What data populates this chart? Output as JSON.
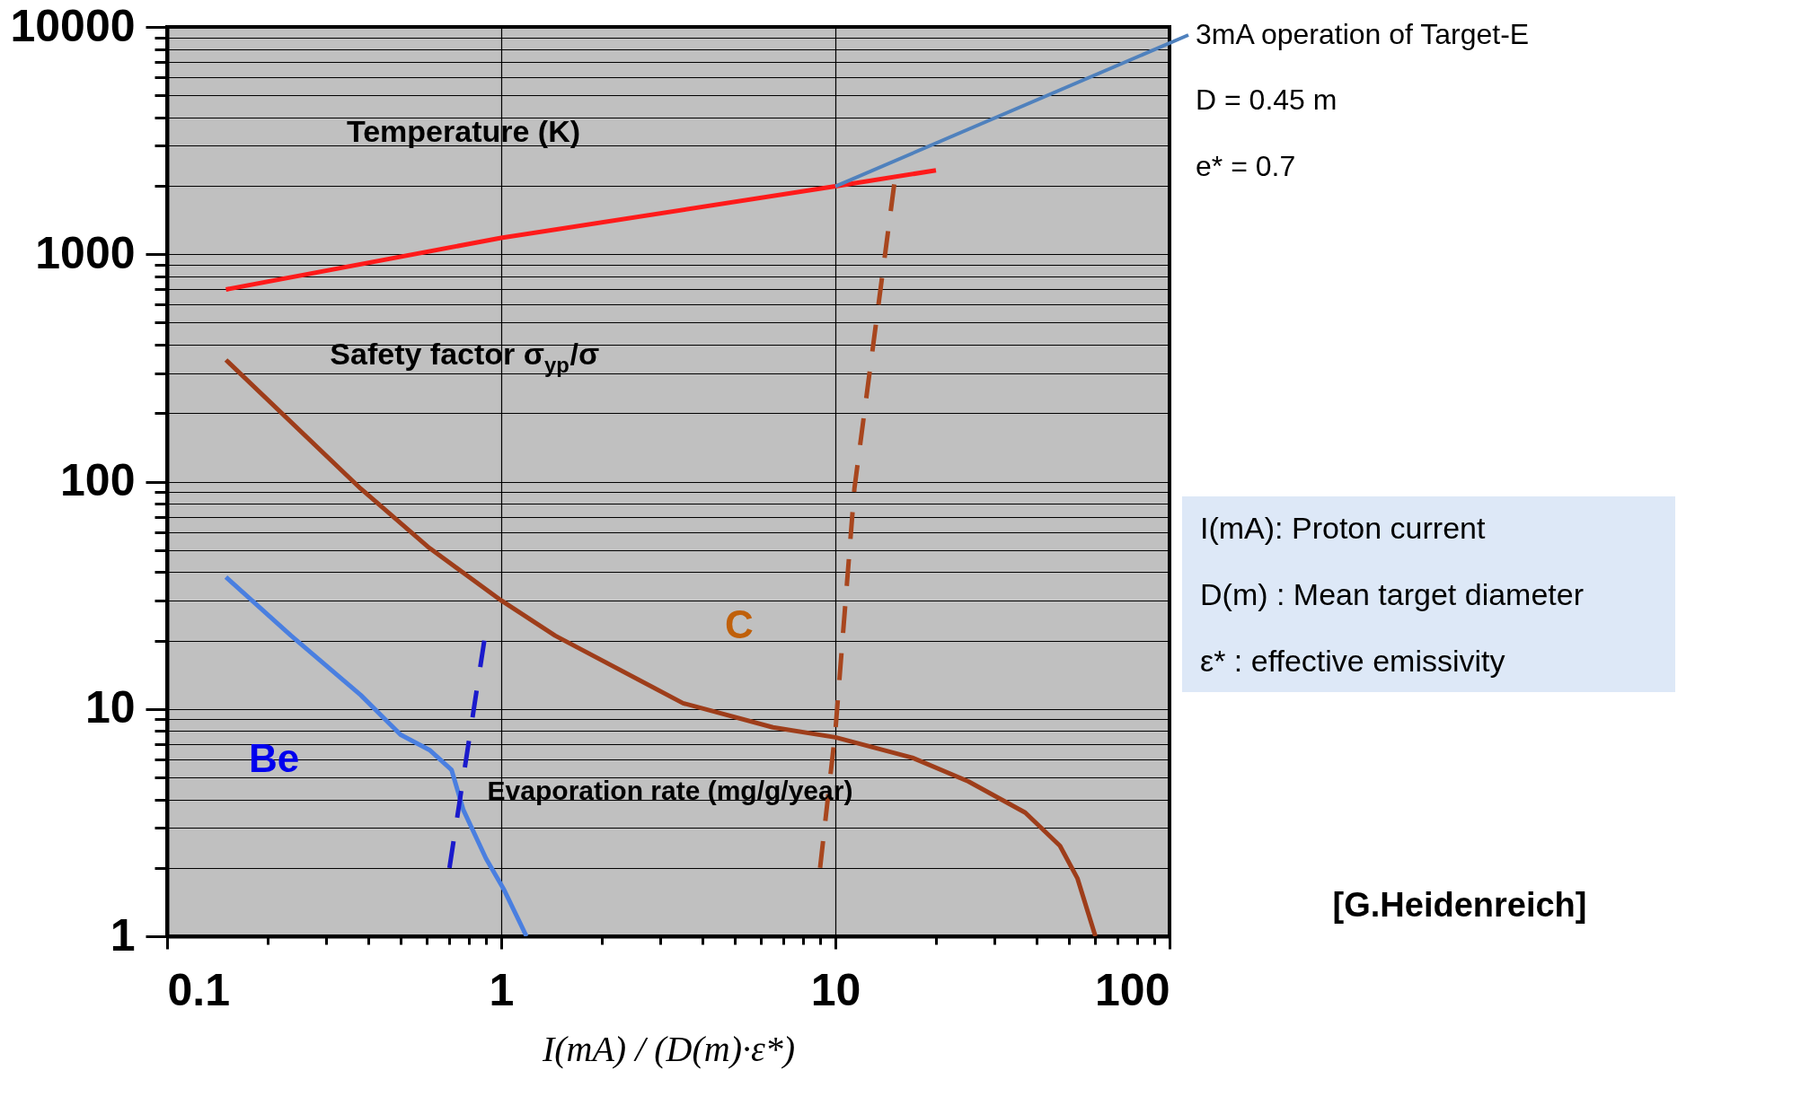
{
  "chart_data": {
    "type": "line",
    "xlabel": "I(mA) / (D(m)·ε*)",
    "log": "xy",
    "grid": true,
    "xlim": [
      0.1,
      100
    ],
    "ylim": [
      1,
      10000
    ],
    "xticks": [
      0.1,
      {
        "value": 0.2,
        "label": null
      },
      {
        "value": 0.3,
        "label": null
      },
      {
        "value": 0.4,
        "label": null
      },
      {
        "value": 0.5,
        "label": null
      },
      {
        "value": 0.6,
        "label": null
      },
      {
        "value": 0.7,
        "label": null
      },
      {
        "value": 0.8,
        "label": null
      },
      {
        "value": 0.9,
        "label": null
      },
      1,
      {
        "value": 2,
        "label": null
      },
      {
        "value": 3,
        "label": null
      },
      {
        "value": 4,
        "label": null
      },
      {
        "value": 5,
        "label": null
      },
      {
        "value": 6,
        "label": null
      },
      {
        "value": 7,
        "label": null
      },
      {
        "value": 8,
        "label": null
      },
      {
        "value": 9,
        "label": null
      },
      10,
      {
        "value": 20,
        "label": null
      },
      {
        "value": 30,
        "label": null
      },
      {
        "value": 40,
        "label": null
      },
      {
        "value": 50,
        "label": null
      },
      {
        "value": 60,
        "label": null
      },
      {
        "value": 70,
        "label": null
      },
      {
        "value": 80,
        "label": null
      },
      {
        "value": 90,
        "label": null
      },
      100
    ],
    "yticks": [
      1,
      {
        "value": 2,
        "label": null
      },
      {
        "value": 3,
        "label": null
      },
      {
        "value": 4,
        "label": null
      },
      {
        "value": 5,
        "label": null
      },
      {
        "value": 6,
        "label": null
      },
      {
        "value": 7,
        "label": null
      },
      {
        "value": 8,
        "label": null
      },
      {
        "value": 9,
        "label": null
      },
      10,
      {
        "value": 20,
        "label": null
      },
      {
        "value": 30,
        "label": null
      },
      {
        "value": 40,
        "label": null
      },
      {
        "value": 50,
        "label": null
      },
      {
        "value": 60,
        "label": null
      },
      {
        "value": 70,
        "label": null
      },
      {
        "value": 80,
        "label": null
      },
      {
        "value": 90,
        "label": null
      },
      100,
      {
        "value": 200,
        "label": null
      },
      {
        "value": 300,
        "label": null
      },
      {
        "value": 400,
        "label": null
      },
      {
        "value": 500,
        "label": null
      },
      {
        "value": 600,
        "label": null
      },
      {
        "value": 700,
        "label": null
      },
      {
        "value": 800,
        "label": null
      },
      {
        "value": 900,
        "label": null
      },
      1000,
      {
        "value": 2000,
        "label": null
      },
      {
        "value": 3000,
        "label": null
      },
      {
        "value": 4000,
        "label": null
      },
      {
        "value": 5000,
        "label": null
      },
      {
        "value": 6000,
        "label": null
      },
      {
        "value": 7000,
        "label": null
      },
      {
        "value": 8000,
        "label": null
      },
      {
        "value": 9000,
        "label": null
      },
      10000
    ],
    "series": [
      {
        "color": "#ff1a1a",
        "line_style": "solid",
        "x": [
          0.15,
          1,
          10,
          20
        ],
        "values": [
          700,
          1180,
          1990,
          2340
        ]
      },
      {
        "color": "#9e3d1a",
        "line_style": "solid",
        "x": [
          0.15,
          0.38,
          0.61,
          1,
          1.45,
          3.5,
          6.5,
          10,
          17,
          25,
          37,
          47,
          53,
          60
        ],
        "values": [
          343,
          93,
          51,
          30,
          21,
          10.6,
          8.3,
          7.5,
          6.1,
          4.8,
          3.5,
          2.5,
          1.8,
          1
        ]
      },
      {
        "color": "#4a7fe0",
        "line_style": "solid",
        "x": [
          0.15,
          0.235,
          0.38,
          0.5,
          0.61,
          0.71,
          0.77,
          0.9,
          1.02,
          1.19
        ],
        "values": [
          38,
          21,
          11.5,
          7.7,
          6.6,
          5.4,
          3.6,
          2.2,
          1.6,
          1
        ]
      },
      {
        "color": "#1a1acc",
        "line_style": "dashed",
        "x": [
          0.7,
          0.89
        ],
        "values": [
          2,
          20
        ]
      },
      {
        "color": "#a8461e",
        "line_style": "dashed",
        "x": [
          9,
          10,
          11.4,
          15
        ],
        "values": [
          2,
          8,
          93,
          2030
        ]
      }
    ],
    "annotations": [
      "Temperature (K)",
      "Safety factor σ$_{yp}$/σ",
      "Be",
      "C",
      "Evaporation rate (mg/g/year)",
      {
        "text": "3mA operation of Target-E",
        "x": 10,
        "y": 1990
      },
      "D = 0.45 m",
      "e* = 0.7",
      "I(mA): Proton current",
      "D(m) : Mean target diameter",
      "ε*  : effective emissivity",
      "[G.Heidenreich]"
    ]
  }
}
